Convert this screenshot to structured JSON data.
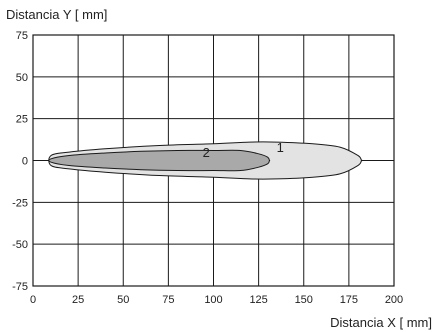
{
  "chart_data": {
    "type": "area",
    "ylabel": "Distancia Y [ mm]",
    "xlabel": "Distancia X [ mm]",
    "xlim": [
      0,
      200
    ],
    "ylim": [
      -75,
      75
    ],
    "xticks": [
      "0",
      "25",
      "50",
      "75",
      "100",
      "125",
      "150",
      "175",
      "200"
    ],
    "yticks": [
      "75",
      "50",
      "25",
      "0",
      "-25",
      "-50",
      "-75"
    ],
    "grid": true,
    "series": [
      {
        "name": "1",
        "fill": "#e3e3e3",
        "upper": [
          [
            10,
            3
          ],
          [
            20,
            5
          ],
          [
            40,
            7
          ],
          [
            70,
            9
          ],
          [
            100,
            10
          ],
          [
            120,
            11
          ],
          [
            135,
            11
          ],
          [
            155,
            10
          ],
          [
            170,
            8
          ],
          [
            180,
            3
          ],
          [
            182,
            0
          ]
        ],
        "lower": [
          [
            10,
            -3
          ],
          [
            20,
            -5
          ],
          [
            40,
            -7
          ],
          [
            70,
            -9
          ],
          [
            100,
            -10
          ],
          [
            120,
            -11
          ],
          [
            135,
            -11
          ],
          [
            155,
            -10
          ],
          [
            170,
            -8
          ],
          [
            180,
            -3
          ],
          [
            182,
            0
          ]
        ]
      },
      {
        "name": "2",
        "fill": "#a9a9a9",
        "upper": [
          [
            10,
            1
          ],
          [
            20,
            3
          ],
          [
            40,
            4.5
          ],
          [
            60,
            5.5
          ],
          [
            80,
            6
          ],
          [
            100,
            6
          ],
          [
            115,
            6
          ],
          [
            125,
            4
          ],
          [
            130,
            2
          ],
          [
            131,
            0
          ]
        ],
        "lower": [
          [
            10,
            -1
          ],
          [
            20,
            -3
          ],
          [
            40,
            -4.5
          ],
          [
            60,
            -5.5
          ],
          [
            80,
            -6
          ],
          [
            100,
            -6
          ],
          [
            115,
            -6
          ],
          [
            125,
            -4
          ],
          [
            130,
            -2
          ],
          [
            131,
            0
          ]
        ]
      }
    ],
    "annotations": [
      {
        "text": "1",
        "x": 137,
        "y": 5
      },
      {
        "text": "2",
        "x": 96,
        "y": 2
      }
    ],
    "partial_bottom_text": "Y"
  }
}
